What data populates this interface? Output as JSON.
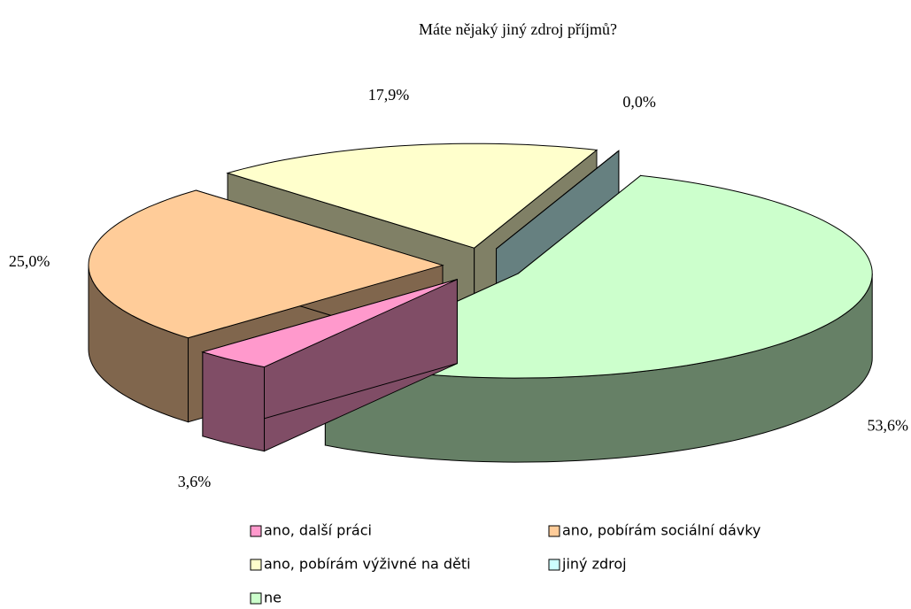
{
  "chart_data": {
    "type": "pie",
    "title": "Máte nějaký jiný zdroj příjmů?",
    "categories": [
      "ano, další práci",
      "ano, pobírám sociální dávky",
      "ano, pobírám výživné na děti",
      "jiný zdroj",
      "ne"
    ],
    "values": [
      3.6,
      25.0,
      17.9,
      0.0,
      53.6
    ],
    "value_labels": [
      "3,6%",
      "25,0%",
      "17,9%",
      "0,0%",
      "53,6%"
    ],
    "colors": [
      "#ff99cc",
      "#ffcc99",
      "#ffffcc",
      "#ccffff",
      "#ccffcc"
    ],
    "legend": "bottom"
  }
}
